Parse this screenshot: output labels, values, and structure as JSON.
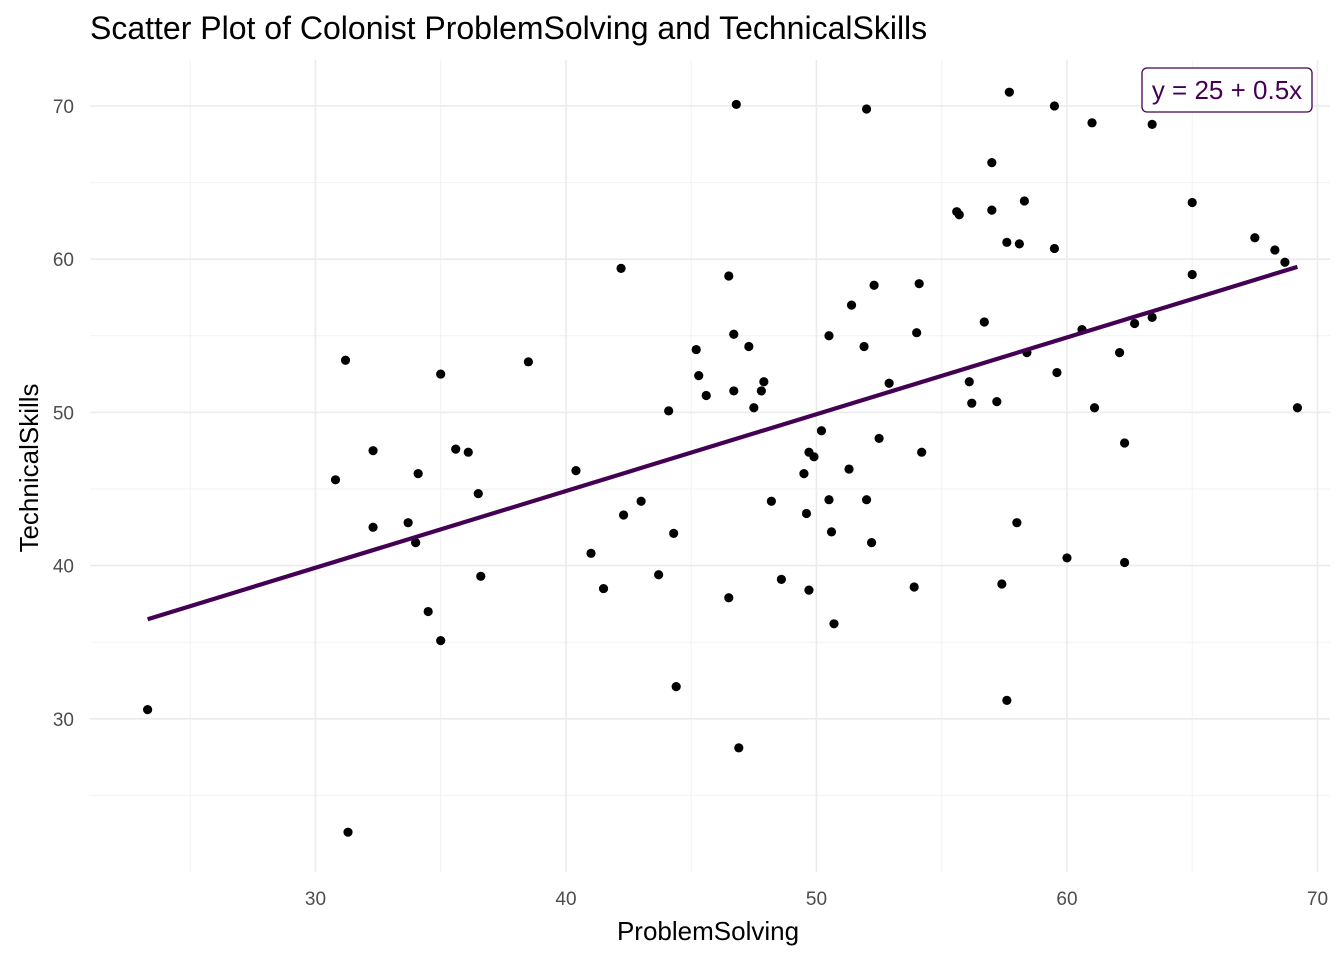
{
  "chart_data": {
    "type": "scatter",
    "title": "Scatter Plot of Colonist ProblemSolving and TechnicalSkills",
    "xlabel": "ProblemSolving",
    "ylabel": "TechnicalSkills",
    "xlim": [
      21,
      70.5
    ],
    "ylim": [
      20,
      73
    ],
    "x_ticks": [
      30,
      40,
      50,
      60,
      70
    ],
    "y_ticks": [
      30,
      40,
      50,
      60,
      70
    ],
    "grid": true,
    "point_color": "#000000",
    "line_color": "#440154",
    "equation_label": "y = 25 + 0.5x",
    "regression": {
      "intercept": 25,
      "slope": 0.5,
      "x_start": 23.3,
      "x_end": 69.2,
      "y_start": 36.5,
      "y_end": 59.5
    },
    "points": [
      [
        23.3,
        30.6
      ],
      [
        31.2,
        53.4
      ],
      [
        31.3,
        22.6
      ],
      [
        30.8,
        45.6
      ],
      [
        32.3,
        47.5
      ],
      [
        32.3,
        42.5
      ],
      [
        33.7,
        42.8
      ],
      [
        34.0,
        41.5
      ],
      [
        34.1,
        46.0
      ],
      [
        34.5,
        37.0
      ],
      [
        35.0,
        35.1
      ],
      [
        35.0,
        52.5
      ],
      [
        35.6,
        47.6
      ],
      [
        36.1,
        47.4
      ],
      [
        36.5,
        44.7
      ],
      [
        36.6,
        39.3
      ],
      [
        38.5,
        53.3
      ],
      [
        40.4,
        46.2
      ],
      [
        41.0,
        40.8
      ],
      [
        41.5,
        38.5
      ],
      [
        42.2,
        59.4
      ],
      [
        42.3,
        43.3
      ],
      [
        43.0,
        44.2
      ],
      [
        43.7,
        39.4
      ],
      [
        44.1,
        50.1
      ],
      [
        44.3,
        42.1
      ],
      [
        44.4,
        32.1
      ],
      [
        45.2,
        54.1
      ],
      [
        45.3,
        52.4
      ],
      [
        45.6,
        51.1
      ],
      [
        46.5,
        58.9
      ],
      [
        46.5,
        37.9
      ],
      [
        46.7,
        51.4
      ],
      [
        46.7,
        55.1
      ],
      [
        46.8,
        70.1
      ],
      [
        46.9,
        28.1
      ],
      [
        47.3,
        54.3
      ],
      [
        47.5,
        50.3
      ],
      [
        47.8,
        51.4
      ],
      [
        47.9,
        52.0
      ],
      [
        48.2,
        44.2
      ],
      [
        48.6,
        39.1
      ],
      [
        49.5,
        46.0
      ],
      [
        49.6,
        43.4
      ],
      [
        49.7,
        38.4
      ],
      [
        49.7,
        47.4
      ],
      [
        49.9,
        47.1
      ],
      [
        50.2,
        48.8
      ],
      [
        50.5,
        55.0
      ],
      [
        50.5,
        44.3
      ],
      [
        50.6,
        42.2
      ],
      [
        50.7,
        36.2
      ],
      [
        51.3,
        46.3
      ],
      [
        51.4,
        57.0
      ],
      [
        51.9,
        54.3
      ],
      [
        52.0,
        69.8
      ],
      [
        52.0,
        44.3
      ],
      [
        52.2,
        41.5
      ],
      [
        52.3,
        58.3
      ],
      [
        52.5,
        48.3
      ],
      [
        52.9,
        51.9
      ],
      [
        53.9,
        38.6
      ],
      [
        54.0,
        55.2
      ],
      [
        54.1,
        58.4
      ],
      [
        54.2,
        47.4
      ],
      [
        55.6,
        63.1
      ],
      [
        55.7,
        62.9
      ],
      [
        56.1,
        52.0
      ],
      [
        56.2,
        50.6
      ],
      [
        56.7,
        55.9
      ],
      [
        57.0,
        66.3
      ],
      [
        57.0,
        63.2
      ],
      [
        57.2,
        50.7
      ],
      [
        57.4,
        38.8
      ],
      [
        57.6,
        61.1
      ],
      [
        57.6,
        31.2
      ],
      [
        57.7,
        70.9
      ],
      [
        58.0,
        42.8
      ],
      [
        58.1,
        61.0
      ],
      [
        58.3,
        63.8
      ],
      [
        58.4,
        53.9
      ],
      [
        59.5,
        70.0
      ],
      [
        59.5,
        60.7
      ],
      [
        59.6,
        52.6
      ],
      [
        60.0,
        40.5
      ],
      [
        60.6,
        55.4
      ],
      [
        61.0,
        68.9
      ],
      [
        61.1,
        50.3
      ],
      [
        62.1,
        53.9
      ],
      [
        62.3,
        48.0
      ],
      [
        62.3,
        40.2
      ],
      [
        62.7,
        55.8
      ],
      [
        63.4,
        68.8
      ],
      [
        63.4,
        56.2
      ],
      [
        65.0,
        59.0
      ],
      [
        65.0,
        63.7
      ],
      [
        67.5,
        61.4
      ],
      [
        68.3,
        60.6
      ],
      [
        68.7,
        59.8
      ],
      [
        69.2,
        50.3
      ]
    ]
  }
}
